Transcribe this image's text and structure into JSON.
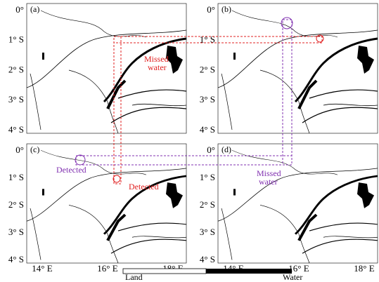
{
  "panels": [
    {
      "label": "(a)"
    },
    {
      "label": "(b)"
    },
    {
      "label": "(c)"
    },
    {
      "label": "(d)"
    }
  ],
  "y_axis_labels": [
    "0°",
    "1° S",
    "2° S",
    "3° S",
    "4° S"
  ],
  "x_axis_labels": [
    "14° E",
    "16° E",
    "18° E"
  ],
  "annotations": {
    "a_missed": [
      "Missed",
      "water"
    ],
    "c_detected_left": "Detected",
    "c_detected_right": "Detected",
    "d_missed": [
      "Missed",
      "water"
    ]
  },
  "legend": {
    "land": "Land",
    "water": "Water"
  }
}
